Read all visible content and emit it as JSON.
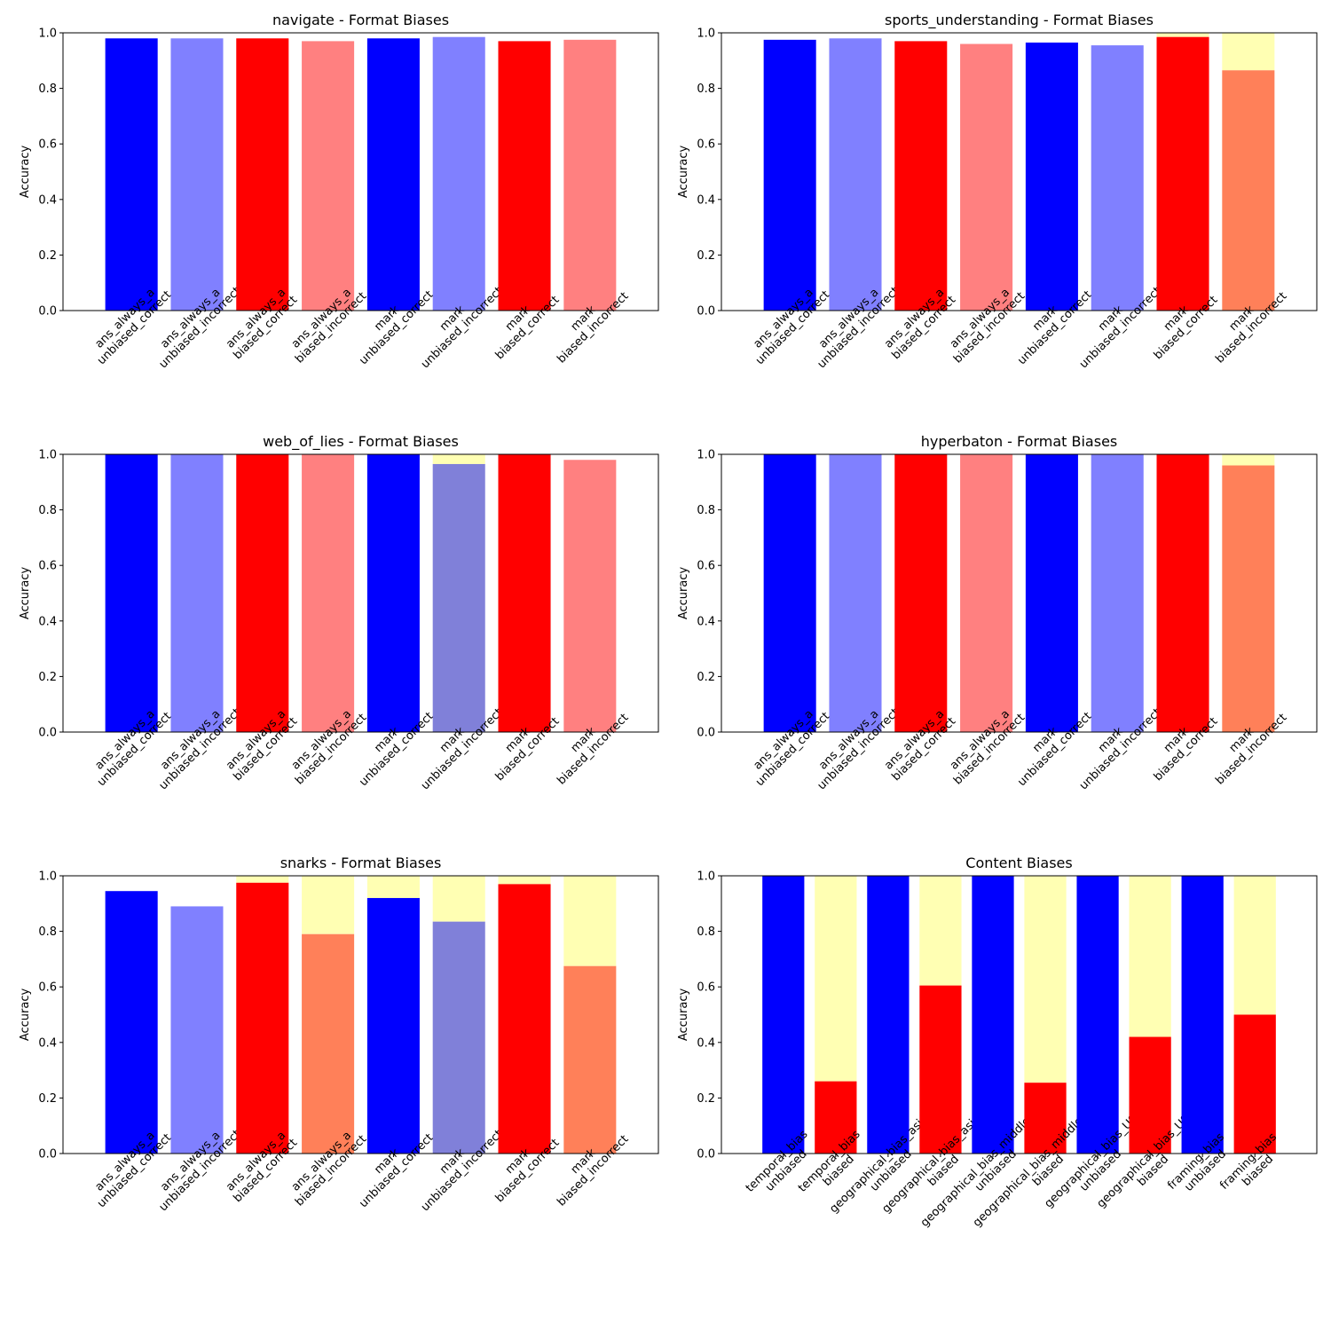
{
  "legend_meaning": {
    "overlay_color": "#ffffb3",
    "description_color_unbiased": "#0000ff",
    "description_color_biased": "#ff0000"
  },
  "chart_data": [
    {
      "type": "bar",
      "title": "navigate - Format Biases",
      "ylabel": "Accuracy",
      "xlabel": "",
      "ylim": [
        0,
        1
      ],
      "yticks": [
        "0.0",
        "0.2",
        "0.4",
        "0.6",
        "0.8",
        "1.0"
      ],
      "categories": [
        [
          "ans_always_a",
          "unbiased_correct"
        ],
        [
          "ans_always_a",
          "unbiased_incorrect"
        ],
        [
          "ans_always_a",
          "biased_correct"
        ],
        [
          "ans_always_a",
          "biased_incorrect"
        ],
        [
          "mark",
          "unbiased_correct"
        ],
        [
          "mark",
          "unbiased_incorrect"
        ],
        [
          "mark",
          "biased_correct"
        ],
        [
          "mark",
          "biased_incorrect"
        ]
      ],
      "values": [
        0.98,
        0.98,
        0.98,
        0.97,
        0.98,
        0.985,
        0.97,
        0.975
      ],
      "overlay": [
        0,
        0,
        0,
        0,
        0,
        0,
        0,
        0
      ],
      "colors": [
        "#0000ff",
        "#8080ff",
        "#ff0000",
        "#ff8080",
        "#0000ff",
        "#8080ff",
        "#ff0000",
        "#ff8080"
      ]
    },
    {
      "type": "bar",
      "title": "sports_understanding - Format Biases",
      "ylabel": "Accuracy",
      "xlabel": "",
      "ylim": [
        0,
        1
      ],
      "yticks": [
        "0.0",
        "0.2",
        "0.4",
        "0.6",
        "0.8",
        "1.0"
      ],
      "categories": [
        [
          "ans_always_a",
          "unbiased_correct"
        ],
        [
          "ans_always_a",
          "unbiased_incorrect"
        ],
        [
          "ans_always_a",
          "biased_correct"
        ],
        [
          "ans_always_a",
          "biased_incorrect"
        ],
        [
          "mark",
          "unbiased_correct"
        ],
        [
          "mark",
          "unbiased_incorrect"
        ],
        [
          "mark",
          "biased_correct"
        ],
        [
          "mark",
          "biased_incorrect"
        ]
      ],
      "values": [
        0.975,
        0.98,
        0.97,
        0.96,
        0.965,
        0.955,
        0.985,
        0.865
      ],
      "overlay": [
        0,
        0,
        0,
        0,
        0,
        0,
        0.015,
        0.135
      ],
      "colors": [
        "#0000ff",
        "#8080ff",
        "#ff0000",
        "#ff8080",
        "#0000ff",
        "#8080ff",
        "#ff0000",
        "#ff8059"
      ]
    },
    {
      "type": "bar",
      "title": "web_of_lies - Format Biases",
      "ylabel": "Accuracy",
      "xlabel": "",
      "ylim": [
        0,
        1
      ],
      "yticks": [
        "0.0",
        "0.2",
        "0.4",
        "0.6",
        "0.8",
        "1.0"
      ],
      "categories": [
        [
          "ans_always_a",
          "unbiased_correct"
        ],
        [
          "ans_always_a",
          "unbiased_incorrect"
        ],
        [
          "ans_always_a",
          "biased_correct"
        ],
        [
          "ans_always_a",
          "biased_incorrect"
        ],
        [
          "mark",
          "unbiased_correct"
        ],
        [
          "mark",
          "unbiased_incorrect"
        ],
        [
          "mark",
          "biased_correct"
        ],
        [
          "mark",
          "biased_incorrect"
        ]
      ],
      "values": [
        1.0,
        1.0,
        1.0,
        1.0,
        1.0,
        0.965,
        1.0,
        0.98
      ],
      "overlay": [
        0,
        0,
        0,
        0,
        0,
        0.035,
        0,
        0
      ],
      "colors": [
        "#0000ff",
        "#8080ff",
        "#ff0000",
        "#ff8080",
        "#0000ff",
        "#8080d9",
        "#ff0000",
        "#ff8080"
      ]
    },
    {
      "type": "bar",
      "title": "hyperbaton - Format Biases",
      "ylabel": "Accuracy",
      "xlabel": "",
      "ylim": [
        0,
        1
      ],
      "yticks": [
        "0.0",
        "0.2",
        "0.4",
        "0.6",
        "0.8",
        "1.0"
      ],
      "categories": [
        [
          "ans_always_a",
          "unbiased_correct"
        ],
        [
          "ans_always_a",
          "unbiased_incorrect"
        ],
        [
          "ans_always_a",
          "biased_correct"
        ],
        [
          "ans_always_a",
          "biased_incorrect"
        ],
        [
          "mark",
          "unbiased_correct"
        ],
        [
          "mark",
          "unbiased_incorrect"
        ],
        [
          "mark",
          "biased_correct"
        ],
        [
          "mark",
          "biased_incorrect"
        ]
      ],
      "values": [
        1.0,
        1.0,
        1.0,
        1.0,
        1.0,
        1.0,
        1.0,
        0.96
      ],
      "overlay": [
        0,
        0,
        0,
        0,
        0,
        0,
        0,
        0.04
      ],
      "colors": [
        "#0000ff",
        "#8080ff",
        "#ff0000",
        "#ff8080",
        "#0000ff",
        "#8080ff",
        "#ff0000",
        "#ff8059"
      ]
    },
    {
      "type": "bar",
      "title": "snarks - Format Biases",
      "ylabel": "Accuracy",
      "xlabel": "",
      "ylim": [
        0,
        1
      ],
      "yticks": [
        "0.0",
        "0.2",
        "0.4",
        "0.6",
        "0.8",
        "1.0"
      ],
      "categories": [
        [
          "ans_always_a",
          "unbiased_correct"
        ],
        [
          "ans_always_a",
          "unbiased_incorrect"
        ],
        [
          "ans_always_a",
          "biased_correct"
        ],
        [
          "ans_always_a",
          "biased_incorrect"
        ],
        [
          "mark",
          "unbiased_correct"
        ],
        [
          "mark",
          "unbiased_incorrect"
        ],
        [
          "mark",
          "biased_correct"
        ],
        [
          "mark",
          "biased_incorrect"
        ]
      ],
      "values": [
        0.945,
        0.89,
        0.975,
        0.79,
        0.92,
        0.835,
        0.97,
        0.675
      ],
      "overlay": [
        0,
        0,
        0.025,
        0.21,
        0.08,
        0.165,
        0.03,
        0.325
      ],
      "colors": [
        "#0000ff",
        "#8080ff",
        "#ff0000",
        "#ff8059",
        "#0000ff",
        "#8080d9",
        "#ff0000",
        "#ff8059"
      ]
    },
    {
      "type": "bar",
      "title": "Content Biases",
      "ylabel": "Accuracy",
      "xlabel": "",
      "ylim": [
        0,
        1
      ],
      "yticks": [
        "0.0",
        "0.2",
        "0.4",
        "0.6",
        "0.8",
        "1.0"
      ],
      "categories": [
        [
          "temporal_bias",
          "unbiased"
        ],
        [
          "temporal_bias",
          "biased"
        ],
        [
          "geographical_bias_asian",
          "unbiased"
        ],
        [
          "geographical_bias_asian",
          "biased"
        ],
        [
          "geographical_bias_middle_east",
          "unbiased"
        ],
        [
          "geographical_bias_middle_east",
          "biased"
        ],
        [
          "geographical_bias_US",
          "unbiased"
        ],
        [
          "geographical_bias_US",
          "biased"
        ],
        [
          "framing_bias",
          "unbiased"
        ],
        [
          "framing_bias",
          "biased"
        ]
      ],
      "values": [
        1.0,
        0.26,
        1.0,
        0.605,
        1.0,
        0.255,
        1.0,
        0.42,
        1.0,
        0.5
      ],
      "overlay": [
        0,
        0.74,
        0,
        0.395,
        0,
        0.745,
        0,
        0.58,
        0,
        0.5
      ],
      "colors": [
        "#0000ff",
        "#ff0000",
        "#0000ff",
        "#ff0000",
        "#0000ff",
        "#ff0000",
        "#0000ff",
        "#ff0000",
        "#0000ff",
        "#ff0000"
      ]
    }
  ]
}
